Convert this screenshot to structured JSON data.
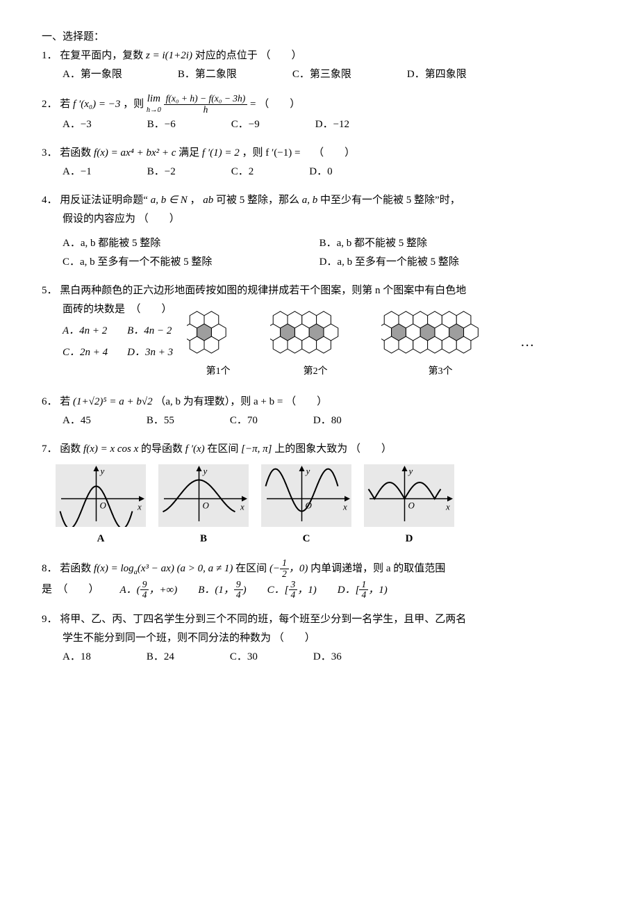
{
  "section_title": "一、选择题：",
  "paren_blank": "（　　）",
  "q1": {
    "num": "1．",
    "stem_pre": "在复平面内，复数 ",
    "formula": "z = i(1+2i)",
    "stem_post": " 对应的点位于",
    "A": "A．第一象限",
    "B": "B．第二象限",
    "C": "C．第三象限",
    "D": "D．第四象限"
  },
  "q2": {
    "num": "2．",
    "stem_pre": "若 ",
    "cond": "f ′(x₀) = −3",
    "stem_mid": " ，则 ",
    "lim_expr_pre": "lim",
    "lim_sub": "h→0",
    "frac_num": "f(x₀ + h) − f(x₀ − 3h)",
    "frac_den": "h",
    "stem_post": " =",
    "A": "A．−3",
    "B": "B．−6",
    "C": "C．−9",
    "D": "D．−12"
  },
  "q3": {
    "num": "3．",
    "stem_pre": "若函数 ",
    "func": "f(x) = ax⁴ + bx² + c",
    "stem_mid": " 满足 ",
    "cond": "f ′(1) = 2",
    "stem_post": " ，则 f ′(−1) =　",
    "A": "A．−1",
    "B": "B．−2",
    "C": "C．2",
    "D": "D．0"
  },
  "q4": {
    "num": "4．",
    "stem_l1_pre": "用反证法证明命题“",
    "ab_in_N": "a, b ∈ N",
    "sep1": " ， ",
    "ab_prod": "ab",
    "cond_mid": " 可被 5 整除，那么 ",
    "ab2": "a, b",
    "stem_l1_post": " 中至少有一个能被 5 整除”时，",
    "stem_l2": "假设的内容应为",
    "A": "A．a, b 都能被 5 整除",
    "B": "B．a, b 都不能被 5 整除",
    "C": "C．a, b 至多有一个不能被 5 整除",
    "D": "D．a, b 至多有一个能被 5 整除"
  },
  "q5": {
    "num": "5．",
    "stem_l1": "黑白两种颜色的正六边形地面砖按如图的规律拼成若干个图案，则第 n 个图案中有白色地",
    "stem_l2": "面砖的块数是　（　　）",
    "A": "A．4n + 2",
    "B": "B．4n − 2",
    "C": "C．2n + 4",
    "D": "D．3n + 3",
    "lab1": "第1个",
    "lab2": "第2个",
    "lab3": "第3个",
    "dots": "…",
    "hex_style": {
      "white_fill": "#ffffff",
      "gray_fill": "#9e9e9e",
      "stroke": "#000000",
      "stroke_width": 1,
      "counts": {
        "pattern1_gray": 1,
        "pattern2_gray": 2,
        "pattern3_gray": 3
      }
    }
  },
  "q6": {
    "num": "6．",
    "stem_pre": "若 ",
    "expr": "(1+√2)⁵ = a + b√2",
    "note": "（a, b 为有理数），则 a + b =",
    "A": "A．45",
    "B": "B．55",
    "C": "C．70",
    "D": "D．80"
  },
  "q7": {
    "num": "7．",
    "stem_pre": "函数 ",
    "func": "f(x) = x cos x",
    "stem_mid": " 的导函数 ",
    "deriv": "f ′(x)",
    "stem_post_pre": " 在区间 ",
    "interval": "[−π, π]",
    "stem_post": " 上的图象大致为",
    "labels": {
      "A": "A",
      "B": "B",
      "C": "C",
      "D": "D"
    },
    "graph_style": {
      "bg_fill": "#e8e8e8",
      "axis_stroke": "#000000",
      "curve_stroke": "#000000",
      "curve_width": 2,
      "width": 130,
      "height": 90,
      "axis_labels": {
        "x": "x",
        "y": "y",
        "o": "O"
      }
    }
  },
  "q8": {
    "num": "8．",
    "stem_pre": "若函数 ",
    "func_pre": "f(x) = log",
    "func_sub": "a",
    "func_arg": "(x³ − ax) (a > 0, a ≠ 1)",
    "stem_mid": " 在区间 ",
    "interval_l": "(−",
    "interval_frac_num": "1",
    "interval_frac_den": "2",
    "interval_r": "，0)",
    "stem_post": " 内单调递增，则 a 的取值范围",
    "line2_pre": "是　（　　）",
    "A_pre": "A．(",
    "A_num": "9",
    "A_den": "4",
    "A_post": "，+∞)",
    "B_pre": "B．(1，",
    "B_num": "9",
    "B_den": "4",
    "B_post": ")",
    "C_pre": "C．[",
    "C_num": "3",
    "C_den": "4",
    "C_post": "，1)",
    "D_pre": "D．[",
    "D_num": "1",
    "D_den": "4",
    "D_post": "，1)"
  },
  "q9": {
    "num": "9．",
    "stem_l1": "将甲、乙、丙、丁四名学生分到三个不同的班，每个班至少分到一名学生，且甲、乙两名",
    "stem_l2": "学生不能分到同一个班，则不同分法的种数为",
    "A": "A．18",
    "B": "B．24",
    "C": "C．30",
    "D": "D．36"
  }
}
